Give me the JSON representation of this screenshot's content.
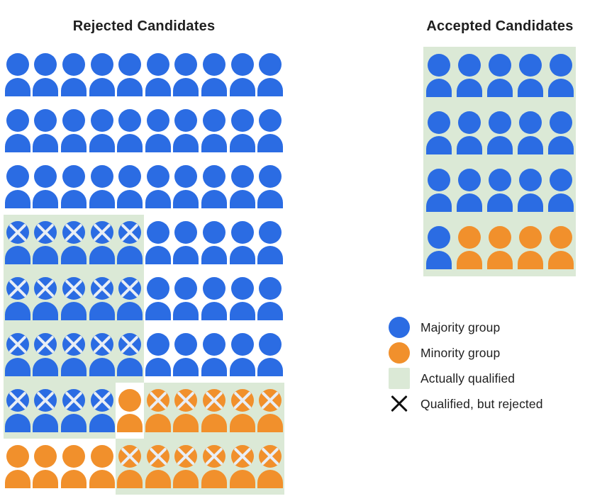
{
  "colors": {
    "majority_blue": "#2b6ce3",
    "minority_orange": "#f1902c",
    "qualified_green": "#dbe9d6",
    "icon_x_color": "#e9eef5",
    "legend_x_color": "#111111",
    "text_color": "#1f1f1f",
    "page_background": "#ffffff"
  },
  "cell_token_meanings": {
    "maj": "majority (blue) person, plain background",
    "maj_q": "majority (blue) person inside green 'actually qualified' region",
    "maj_qx": "majority (blue) person in qualified region with X mark (qualified but rejected)",
    "min": "minority (orange) person, plain background",
    "min_q": "minority (orange) person inside green 'actually qualified' region",
    "min_qx": "minority (orange) person in qualified region with X mark (qualified but rejected)"
  },
  "rejected": {
    "title": "Rejected Candidates",
    "rows": [
      [
        "maj",
        "maj",
        "maj",
        "maj",
        "maj",
        "maj",
        "maj",
        "maj",
        "maj",
        "maj"
      ],
      [
        "maj",
        "maj",
        "maj",
        "maj",
        "maj",
        "maj",
        "maj",
        "maj",
        "maj",
        "maj"
      ],
      [
        "maj",
        "maj",
        "maj",
        "maj",
        "maj",
        "maj",
        "maj",
        "maj",
        "maj",
        "maj"
      ],
      [
        "maj_qx",
        "maj_qx",
        "maj_qx",
        "maj_qx",
        "maj_qx",
        "maj",
        "maj",
        "maj",
        "maj",
        "maj"
      ],
      [
        "maj_qx",
        "maj_qx",
        "maj_qx",
        "maj_qx",
        "maj_qx",
        "maj",
        "maj",
        "maj",
        "maj",
        "maj"
      ],
      [
        "maj_qx",
        "maj_qx",
        "maj_qx",
        "maj_qx",
        "maj_qx",
        "maj",
        "maj",
        "maj",
        "maj",
        "maj"
      ],
      [
        "maj_qx",
        "maj_qx",
        "maj_qx",
        "maj_qx",
        "min",
        "min_qx",
        "min_qx",
        "min_qx",
        "min_qx",
        "min_qx"
      ],
      [
        "min",
        "min",
        "min",
        "min",
        "min_qx",
        "min_qx",
        "min_qx",
        "min_qx",
        "min_qx",
        "min_qx"
      ]
    ],
    "counts": {
      "total": 80,
      "majority": 64,
      "minority": 16,
      "qualified_but_rejected_majority": 19,
      "qualified_but_rejected_minority": 11
    }
  },
  "accepted": {
    "title": "Accepted Candidates",
    "rows": [
      [
        "maj_q",
        "maj_q",
        "maj_q",
        "maj_q",
        "maj_q"
      ],
      [
        "maj_q",
        "maj_q",
        "maj_q",
        "maj_q",
        "maj_q"
      ],
      [
        "maj_q",
        "maj_q",
        "maj_q",
        "maj_q",
        "maj_q"
      ],
      [
        "maj_q",
        "min_q",
        "min_q",
        "min_q",
        "min_q"
      ]
    ],
    "counts": {
      "total": 20,
      "majority": 16,
      "minority": 4,
      "all_qualified": true
    }
  },
  "legend": {
    "items": [
      {
        "swatch": "circle-majority",
        "label": "Majority group"
      },
      {
        "swatch": "circle-minority",
        "label": "Minority group"
      },
      {
        "swatch": "square-qualified",
        "label": "Actually qualified"
      },
      {
        "swatch": "x-rejected",
        "label": "Qualified, but rejected"
      }
    ]
  }
}
